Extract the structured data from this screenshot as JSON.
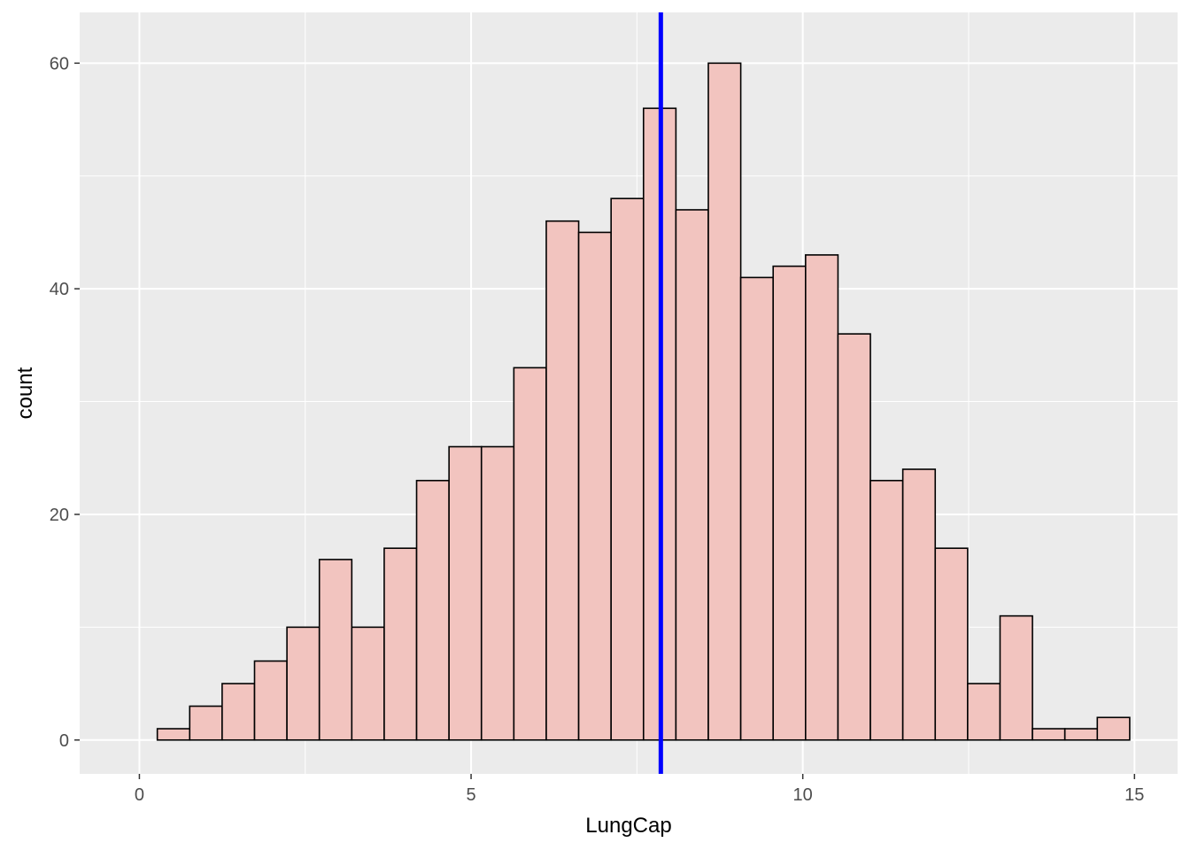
{
  "chart_data": {
    "type": "bar",
    "subtype": "histogram",
    "xlabel": "LungCap",
    "ylabel": "count",
    "xlim": [
      -0.9,
      15.65
    ],
    "ylim": [
      -3,
      64.5
    ],
    "x_ticks": [
      0,
      5,
      10,
      15
    ],
    "x_minor_ticks": [
      2.5,
      7.5,
      12.5
    ],
    "y_ticks": [
      0,
      20,
      40,
      60
    ],
    "y_minor_ticks": [
      10,
      30,
      50
    ],
    "bin_start": 0.27,
    "bin_width": 0.4886,
    "values": [
      1,
      3,
      5,
      7,
      10,
      16,
      10,
      17,
      23,
      26,
      26,
      33,
      46,
      45,
      48,
      56,
      47,
      60,
      41,
      42,
      43,
      36,
      23,
      24,
      17,
      5,
      11,
      1,
      1,
      2
    ],
    "vline": {
      "x": 7.86,
      "color": "#0000ff"
    },
    "bar_fill": "#f2c4bf",
    "bar_stroke": "#000000",
    "panel_background": "#ebebeb",
    "grid": true,
    "grid_color": "#ffffff",
    "legend": "none"
  }
}
